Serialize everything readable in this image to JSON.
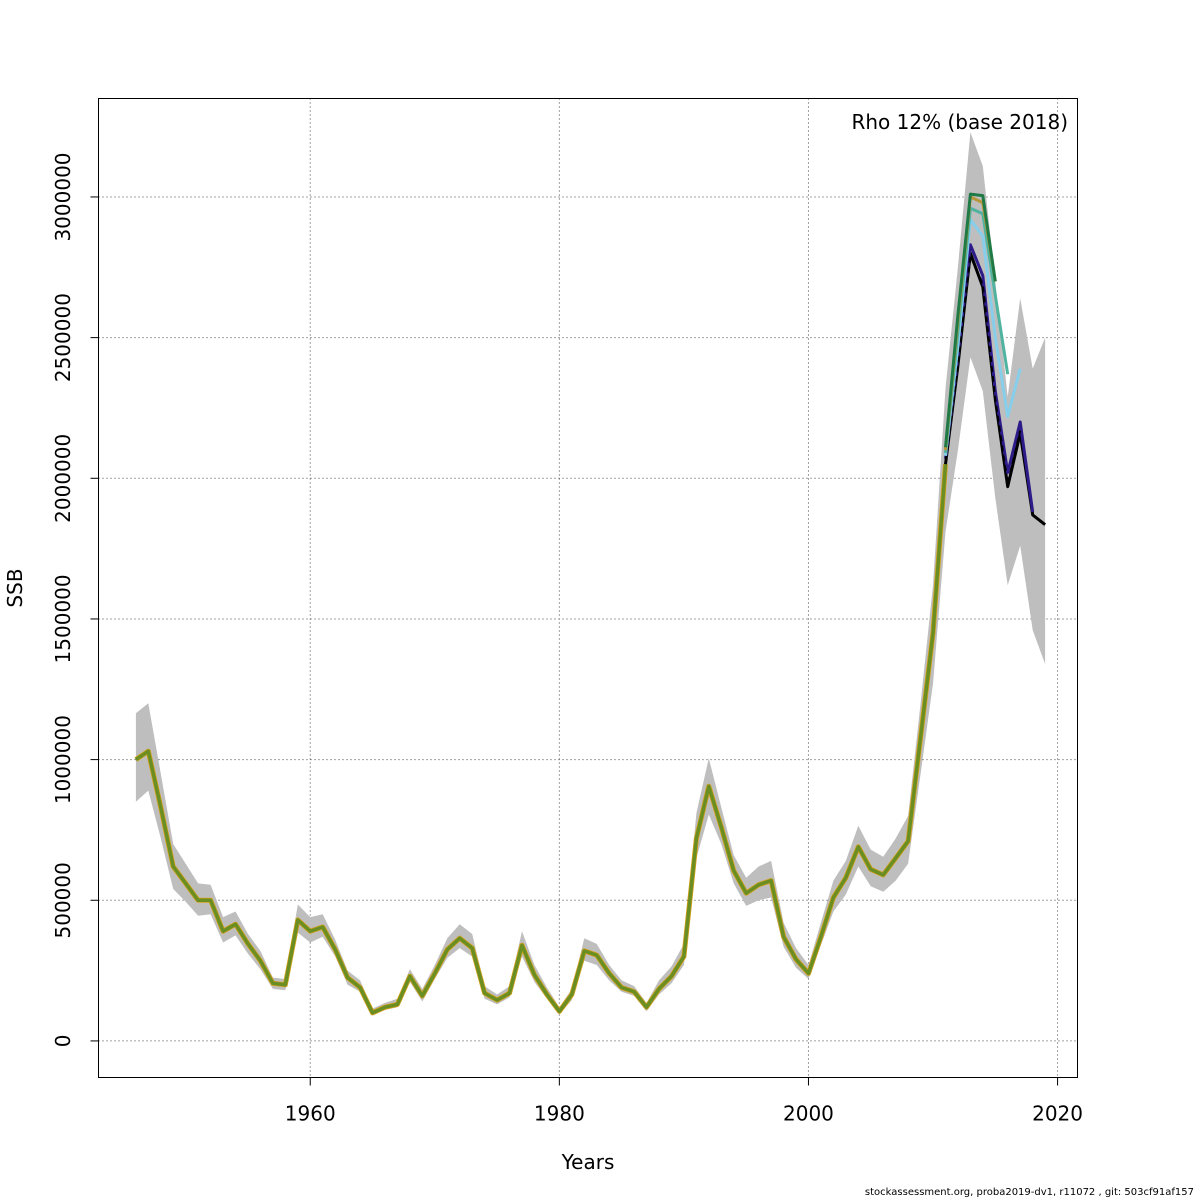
{
  "chart_data": {
    "type": "line",
    "xlabel": "Years",
    "ylabel": "SSB",
    "annotation": "Rho 12% (base 2018)",
    "xlim": [
      1943,
      2021.6
    ],
    "ylim": [
      -130000,
      3350000
    ],
    "xticks": [
      1960,
      1980,
      2000,
      2020
    ],
    "yticks": [
      0,
      500000,
      1000000,
      1500000,
      2000000,
      2500000,
      3000000
    ],
    "ytick_labels": [
      "0",
      "500000",
      "1000000",
      "1500000",
      "2000000",
      "2500000",
      "3000000"
    ],
    "xtick_labels": [
      "1960",
      "1980",
      "2000",
      "2020"
    ],
    "grid": true,
    "colors": {
      "band": "#bebebe",
      "base": "#6b8e23",
      "base_outline": "#d4a017",
      "peel_dark": "#2d1b8a",
      "peel_dashed": "#000000",
      "peel_teal": "#4fb3a0",
      "peel_green": "#1f7a45",
      "peel_gold": "#b8963a",
      "peel_lightblue": "#87ceeb"
    },
    "band": {
      "x": [
        1946,
        1947,
        1948,
        1949,
        1950,
        1951,
        1952,
        1953,
        1954,
        1955,
        1956,
        1957,
        1958,
        1959,
        1960,
        1961,
        1962,
        1963,
        1964,
        1965,
        1966,
        1967,
        1968,
        1969,
        1970,
        1971,
        1972,
        1973,
        1974,
        1975,
        1976,
        1977,
        1978,
        1979,
        1980,
        1981,
        1982,
        1983,
        1984,
        1985,
        1986,
        1987,
        1988,
        1989,
        1990,
        1991,
        1992,
        1993,
        1994,
        1995,
        1996,
        1997,
        1998,
        1999,
        2000,
        2001,
        2002,
        2003,
        2004,
        2005,
        2006,
        2007,
        2008,
        2009,
        2010,
        2011,
        2012,
        2013,
        2014,
        2015,
        2016,
        2017,
        2018,
        2019
      ],
      "upper": [
        1165000,
        1200000,
        950000,
        700000,
        630000,
        560000,
        555000,
        440000,
        460000,
        380000,
        320000,
        225000,
        220000,
        485000,
        440000,
        450000,
        360000,
        250000,
        215000,
        115000,
        135000,
        150000,
        255000,
        185000,
        270000,
        365000,
        415000,
        380000,
        195000,
        165000,
        195000,
        390000,
        270000,
        190000,
        120000,
        185000,
        365000,
        345000,
        270000,
        215000,
        195000,
        135000,
        215000,
        265000,
        345000,
        810000,
        1005000,
        830000,
        660000,
        580000,
        620000,
        640000,
        420000,
        330000,
        270000,
        420000,
        570000,
        640000,
        765000,
        680000,
        655000,
        720000,
        800000,
        1200000,
        1620000,
        2320000,
        2750000,
        3230000,
        3110000,
        2700000,
        2290000,
        2640000,
        2390000,
        2500000
      ],
      "lower": [
        850000,
        890000,
        720000,
        540000,
        495000,
        445000,
        450000,
        350000,
        375000,
        310000,
        255000,
        185000,
        180000,
        385000,
        350000,
        370000,
        300000,
        200000,
        175000,
        90000,
        110000,
        120000,
        210000,
        140000,
        220000,
        295000,
        330000,
        300000,
        150000,
        130000,
        155000,
        300000,
        210000,
        150000,
        95000,
        145000,
        285000,
        270000,
        215000,
        175000,
        160000,
        105000,
        165000,
        205000,
        270000,
        650000,
        805000,
        700000,
        560000,
        480000,
        500000,
        510000,
        335000,
        260000,
        220000,
        340000,
        460000,
        520000,
        620000,
        550000,
        530000,
        570000,
        630000,
        950000,
        1270000,
        1810000,
        2100000,
        2430000,
        2310000,
        1930000,
        1620000,
        1760000,
        1460000,
        1340000
      ]
    },
    "series": [
      {
        "role": "base",
        "x": [
          1946,
          1947,
          1948,
          1949,
          1950,
          1951,
          1952,
          1953,
          1954,
          1955,
          1956,
          1957,
          1958,
          1959,
          1960,
          1961,
          1962,
          1963,
          1964,
          1965,
          1966,
          1967,
          1968,
          1969,
          1970,
          1971,
          1972,
          1973,
          1974,
          1975,
          1976,
          1977,
          1978,
          1979,
          1980,
          1981,
          1982,
          1983,
          1984,
          1985,
          1986,
          1987,
          1988,
          1989,
          1990,
          1991,
          1992,
          1993,
          1994,
          1995,
          1996,
          1997,
          1998,
          1999,
          2000,
          2001,
          2002,
          2003,
          2004,
          2005,
          2006,
          2007,
          2008,
          2009,
          2010,
          2011
        ],
        "values": [
          1000000,
          1030000,
          830000,
          620000,
          560000,
          500000,
          500000,
          390000,
          415000,
          345000,
          285000,
          205000,
          200000,
          430000,
          390000,
          405000,
          325000,
          225000,
          190000,
          100000,
          120000,
          130000,
          230000,
          160000,
          240000,
          325000,
          365000,
          330000,
          170000,
          145000,
          170000,
          340000,
          235000,
          165000,
          105000,
          165000,
          320000,
          305000,
          240000,
          190000,
          175000,
          120000,
          185000,
          230000,
          300000,
          720000,
          905000,
          760000,
          605000,
          525000,
          555000,
          570000,
          370000,
          290000,
          240000,
          370000,
          510000,
          580000,
          690000,
          610000,
          590000,
          650000,
          710000,
          1080000,
          1450000,
          2050000
        ],
        "color": "#6b8e23",
        "width": 3.5,
        "dash": ""
      },
      {
        "role": "base-final",
        "x": [
          2011,
          2012,
          2013,
          2014,
          2015,
          2016,
          2017,
          2018,
          2019
        ],
        "values": [
          2050000,
          2400000,
          2800000,
          2680000,
          2280000,
          1970000,
          2160000,
          1870000,
          1835000
        ],
        "color": "#000000",
        "width": 3,
        "dash": ""
      },
      {
        "role": "peel-1",
        "x": [
          2011,
          2012,
          2013,
          2014,
          2015,
          2016,
          2017,
          2018
        ],
        "values": [
          2070000,
          2430000,
          2830000,
          2720000,
          2310000,
          2020000,
          2200000,
          1880000
        ],
        "color": "#2d1b8a",
        "width": 3,
        "dash": ""
      },
      {
        "role": "peel-1-dashed",
        "x": [
          2011,
          2012,
          2013,
          2014,
          2015,
          2016,
          2017
        ],
        "values": [
          2060000,
          2410000,
          2790000,
          2690000,
          2280000,
          1980000,
          2170000
        ],
        "color": "#000000",
        "width": 2,
        "dash": "6,4"
      },
      {
        "role": "peel-2",
        "x": [
          2011,
          2012,
          2013,
          2014,
          2015,
          2016,
          2017
        ],
        "values": [
          2080000,
          2470000,
          2920000,
          2860000,
          2500000,
          2220000,
          2390000
        ],
        "color": "#87ceeb",
        "width": 3,
        "dash": ""
      },
      {
        "role": "peel-3",
        "x": [
          2011,
          2012,
          2013,
          2014,
          2015,
          2016
        ],
        "values": [
          2090000,
          2520000,
          2960000,
          2940000,
          2650000,
          2370000
        ],
        "color": "#4fb3a0",
        "width": 3,
        "dash": ""
      },
      {
        "role": "peel-4",
        "x": [
          2011,
          2012,
          2013,
          2014,
          2015
        ],
        "values": [
          2100000,
          2560000,
          3000000,
          2980000,
          2700000
        ],
        "color": "#b8963a",
        "width": 3,
        "dash": ""
      },
      {
        "role": "peel-5",
        "x": [
          2011,
          2012,
          2013,
          2014,
          2015
        ],
        "values": [
          2110000,
          2580000,
          3010000,
          3005000,
          2700000
        ],
        "color": "#1f7a45",
        "width": 3,
        "dash": ""
      }
    ]
  },
  "footer": "stockassessment.org, proba2019-dv1, r11072 , git: 503cf91af157"
}
